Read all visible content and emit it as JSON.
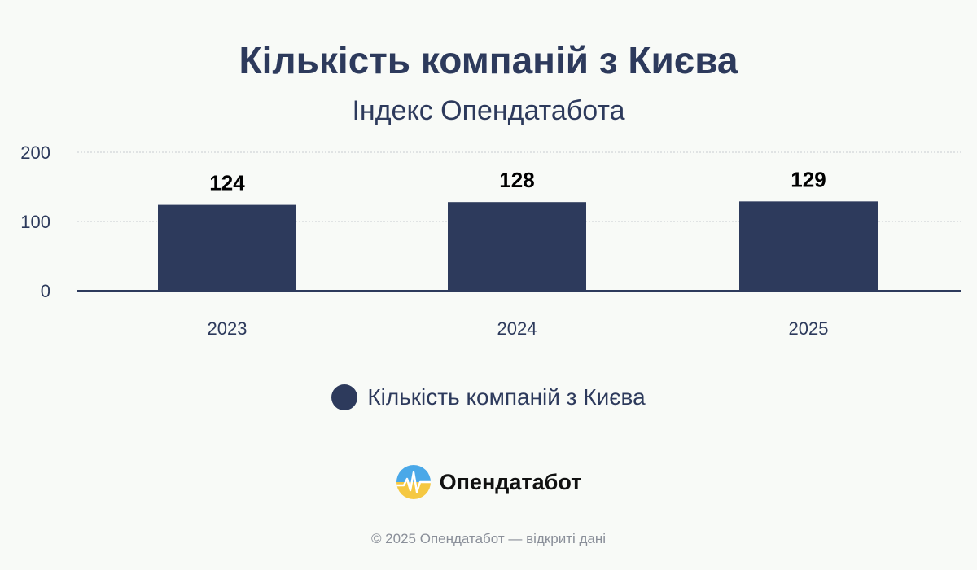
{
  "header": {
    "title": "Кількість компаній з Києва",
    "subtitle": "Індекс Опендатабота"
  },
  "chart_data": {
    "type": "bar",
    "title": "Кількість компаній з Києва",
    "subtitle": "Індекс Опендатабота",
    "categories": [
      "2023",
      "2024",
      "2025"
    ],
    "series": [
      {
        "name": "Кількість компаній з Києва",
        "values": [
          124,
          128,
          129
        ]
      }
    ],
    "ylim": [
      0,
      200
    ],
    "yticks": [
      "0",
      "100",
      "200"
    ],
    "data_labels": [
      "124",
      "128",
      "129"
    ],
    "grid": true,
    "legend_position": "bottom",
    "bar_color": "#2d3a5c"
  },
  "legend": {
    "label": "Кількість компаній з Києва",
    "color": "#2d3a5c"
  },
  "brand": {
    "name": "Опендатабот",
    "logo_icon": "opendatabot-logo-icon"
  },
  "footer": {
    "text": "© 2025 Опендатабот — відкриті дані"
  }
}
